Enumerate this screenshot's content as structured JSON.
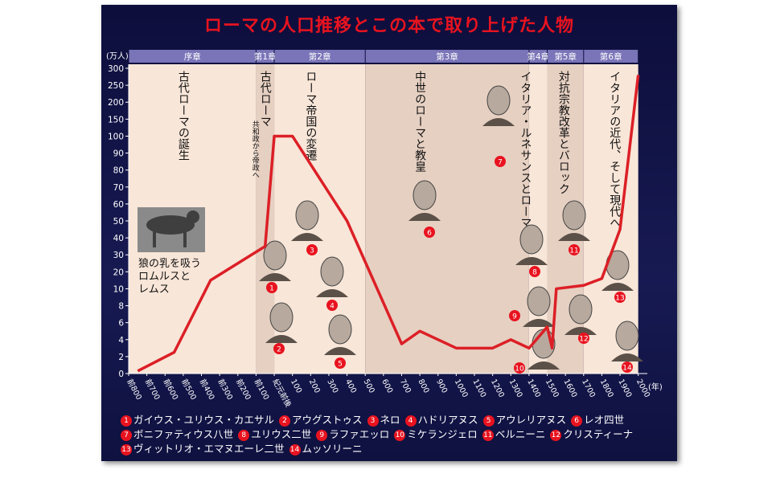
{
  "title": "ローマの人口推移とこの本で取り上げた人物",
  "chart_data": {
    "type": "line",
    "title": "ローマの人口推移とこの本で取り上げた人物",
    "ylabel": "(万人)",
    "xlabel": "(年)",
    "yticks": [
      "0",
      "2",
      "4",
      "6",
      "8",
      "10",
      "20",
      "30",
      "40",
      "50",
      "60",
      "70",
      "80",
      "90",
      "100",
      "150",
      "200",
      "250",
      "300"
    ],
    "xticks": [
      "前800",
      "前700",
      "前600",
      "前500",
      "前400",
      "前300",
      "前200",
      "前100",
      "紀元前後",
      "100",
      "200",
      "300",
      "400",
      "500",
      "600",
      "700",
      "800",
      "900",
      "1000",
      "1100",
      "1200",
      "1300",
      "1400",
      "1500",
      "1600",
      "1700",
      "1800",
      "1900",
      "2000"
    ],
    "series": [
      {
        "values": [
          {
            "year": -750,
            "pop": 0.3
          },
          {
            "year": -550,
            "pop": 2.5
          },
          {
            "year": -350,
            "pop": 15
          },
          {
            "year": -50,
            "pop": 35
          },
          {
            "year": 0,
            "pop": 100
          },
          {
            "year": 100,
            "pop": 100
          },
          {
            "year": 400,
            "pop": 50
          },
          {
            "year": 700,
            "pop": 3.5
          },
          {
            "year": 800,
            "pop": 5
          },
          {
            "year": 1000,
            "pop": 3
          },
          {
            "year": 1200,
            "pop": 3
          },
          {
            "year": 1300,
            "pop": 4
          },
          {
            "year": 1400,
            "pop": 3
          },
          {
            "year": 1500,
            "pop": 5.5
          },
          {
            "year": 1527,
            "pop": 3
          },
          {
            "year": 1550,
            "pop": 10
          },
          {
            "year": 1700,
            "pop": 12
          },
          {
            "year": 1800,
            "pop": 16
          },
          {
            "year": 1900,
            "pop": 45
          },
          {
            "year": 2000,
            "pop": 280
          }
        ],
        "color": "#dc1f26"
      }
    ],
    "chapters": [
      {
        "label": "序章",
        "start": -800,
        "end": -100
      },
      {
        "label": "第1章",
        "start": -100,
        "end": 0
      },
      {
        "label": "第2章",
        "start": 0,
        "end": 500
      },
      {
        "label": "第3章",
        "start": 500,
        "end": 1400
      },
      {
        "label": "第4章",
        "start": 1400,
        "end": 1500
      },
      {
        "label": "第5章",
        "start": 1500,
        "end": 1700
      },
      {
        "label": "第6章",
        "start": 1700,
        "end": 2000
      }
    ],
    "chapter_titles": [
      {
        "text": "古代ローマの誕生",
        "year": -500
      },
      {
        "text": "古代ローマ",
        "year": -50,
        "sub": "共和政から帝政へ"
      },
      {
        "text": "ローマ帝国の変遷",
        "year": 200
      },
      {
        "text": "中世のローマと教皇",
        "year": 800
      },
      {
        "text": "イタリア・ルネサンスとローマ",
        "year": 1380
      },
      {
        "text": "対抗宗教改革とバロック",
        "year": 1590
      },
      {
        "text": "イタリアの近代、そして現代へ",
        "year": 1870
      }
    ],
    "annotation": [
      "狼の乳を吸う",
      "ロムルスと",
      "レムス"
    ],
    "persons": [
      {
        "n": "1",
        "name": "ガイウス・ユリウス・カエサル"
      },
      {
        "n": "2",
        "name": "アウグストゥス"
      },
      {
        "n": "3",
        "name": "ネロ"
      },
      {
        "n": "4",
        "name": "ハドリアヌス"
      },
      {
        "n": "5",
        "name": "アウレリアヌス"
      },
      {
        "n": "6",
        "name": "レオ四世"
      },
      {
        "n": "7",
        "name": "ボニファティウス八世"
      },
      {
        "n": "8",
        "name": "ユリウス二世"
      },
      {
        "n": "9",
        "name": "ラファエッロ"
      },
      {
        "n": "10",
        "name": "ミケランジェロ"
      },
      {
        "n": "11",
        "name": "ベルニーニ"
      },
      {
        "n": "12",
        "name": "クリスティーナ"
      },
      {
        "n": "13",
        "name": "ヴィットリオ・エマヌエーレ二世"
      },
      {
        "n": "14",
        "name": "ムッソリーニ"
      }
    ],
    "colors": {
      "line": "#dc1f26",
      "chapter_band": "#7a74b8",
      "panel_light": "#f8e6d8",
      "panel_dark": "#e6d0c2",
      "badge": "#e8131f"
    }
  }
}
